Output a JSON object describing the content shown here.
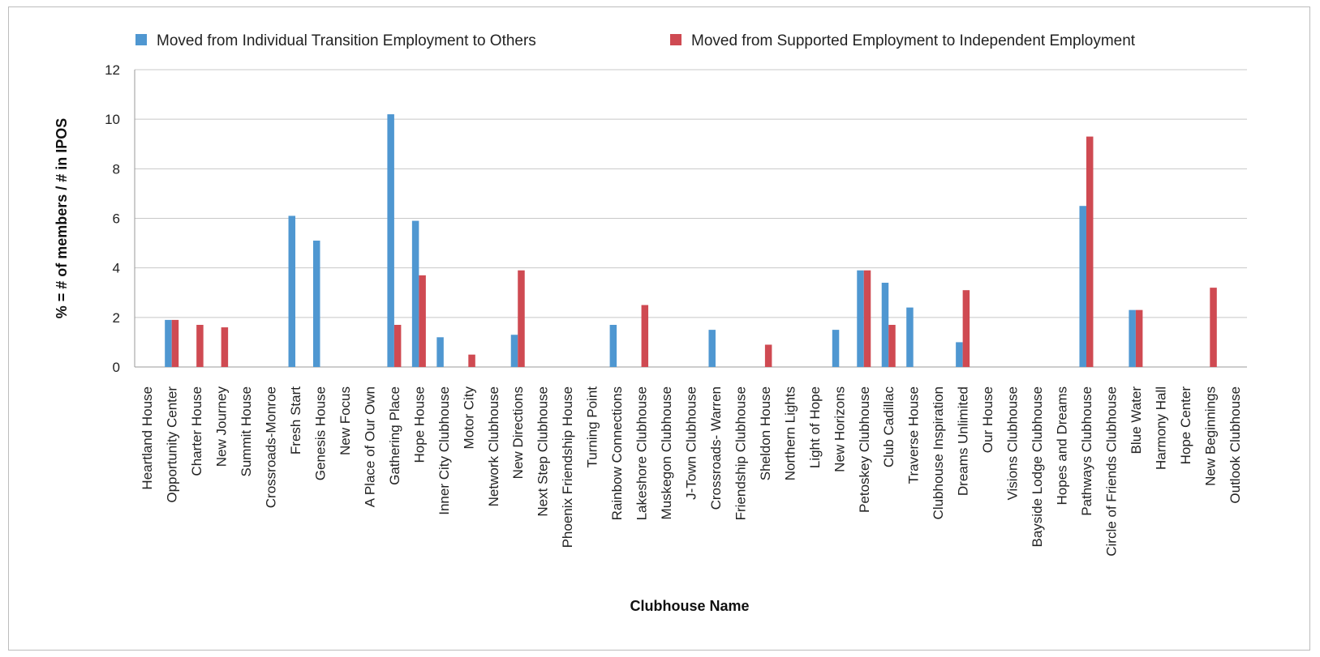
{
  "chart_data": {
    "type": "bar",
    "xlabel": "Clubhouse Name",
    "ylabel": "% = # of members / # in IPOS",
    "ylim": [
      0,
      12
    ],
    "yticks": [
      0,
      2,
      4,
      6,
      8,
      10,
      12
    ],
    "grid": true,
    "legend_position": "top",
    "categories": [
      "Heartland House",
      "Opportunity Center",
      "Charter House",
      "New Journey",
      "Summit House",
      "Crossroads-Monroe",
      "Fresh Start",
      "Genesis House",
      "New Focus",
      "A Place of Our Own",
      "Gathering Place",
      "Hope House",
      "Inner City Clubhouse",
      "Motor City",
      "Network Clubhouse",
      "New Directions",
      "Next Step Clubhouse",
      "Phoenix Friendship House",
      "Turning Point",
      "Rainbow Connections",
      "Lakeshore Clubhouse",
      "Muskegon Clubhouse",
      "J-Town Clubhouse",
      "Crossroads- Warren",
      "Friendship Clubhouse",
      "Sheldon House",
      "Northern Lights",
      "Light of Hope",
      "New Horizons",
      "Petoskey Clubhouse",
      "Club Cadillac",
      "Traverse House",
      "Clubhouse Inspiration",
      "Dreams Unlimited",
      "Our House",
      "Visions Clubhouse",
      "Bayside Lodge Clubhouse",
      "Hopes and Dreams",
      "Pathways Clubhouse",
      "Circle of Friends Clubhouse",
      "Blue Water",
      "Harmony Hall",
      "Hope Center",
      "New Beginnings",
      "Outlook Clubhouse"
    ],
    "series": [
      {
        "name": "Moved from Individual Transition Employment to Others",
        "color": "#4f97d1",
        "values": [
          0,
          1.9,
          0,
          0,
          0,
          0,
          6.1,
          5.1,
          0,
          0,
          10.2,
          5.9,
          1.2,
          0,
          0,
          1.3,
          0,
          0,
          0,
          1.7,
          0,
          0,
          0,
          1.5,
          0,
          0,
          0,
          0,
          1.5,
          3.9,
          3.4,
          2.4,
          0,
          1.0,
          0,
          0,
          0,
          0,
          6.5,
          0,
          2.3,
          0,
          0,
          0,
          0
        ]
      },
      {
        "name": "Moved from Supported Employment to Independent Employment",
        "color": "#cf4a52",
        "values": [
          0,
          1.9,
          1.7,
          1.6,
          0,
          0,
          0,
          0,
          0,
          0,
          1.7,
          3.7,
          0,
          0.5,
          0,
          3.9,
          0,
          0,
          0,
          0,
          2.5,
          0,
          0,
          0,
          0,
          0.9,
          0,
          0,
          0,
          3.9,
          1.7,
          0,
          0,
          3.1,
          0,
          0,
          0,
          0,
          9.3,
          0,
          2.3,
          0,
          0,
          3.2,
          0
        ]
      }
    ]
  }
}
